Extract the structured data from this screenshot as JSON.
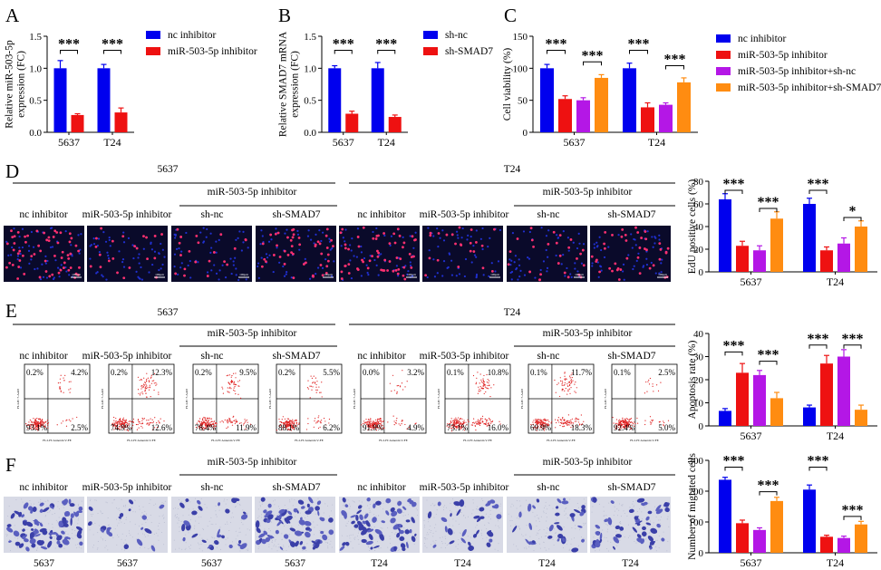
{
  "colors": {
    "nc": "#0000EE",
    "mir": "#EE1111",
    "shnc": "#B417E6",
    "shsmad": "#FF8C11"
  },
  "text": {
    "mir_inh": "miR-503-5p inhibitor",
    "nc_inh": "nc inhibitor",
    "sh_nc": "sh-nc",
    "sh_smad7": "sh-SMAD7",
    "c5637": "5637",
    "t24": "T24",
    "scale_bar": "100μm"
  },
  "panel_letters": [
    "A",
    "B",
    "C",
    "D",
    "E",
    "F"
  ],
  "chart_data": [
    {
      "id": "A",
      "type": "bar",
      "ylabel": "Relative miR-503-5p expression (FC)",
      "ylabel_lines": [
        "Relative miR-503-5p",
        "expression (FC)"
      ],
      "categories": [
        "5637",
        "T24"
      ],
      "ylim": [
        0,
        1.5
      ],
      "yticks": [
        "0.0",
        "0.5",
        "1.0",
        "1.5"
      ],
      "series": [
        {
          "name": "nc inhibitor",
          "color": "nc",
          "values": [
            1.0,
            1.0
          ],
          "errors": [
            0.12,
            0.06
          ]
        },
        {
          "name": "miR-503-5p inhibitor",
          "color": "mir",
          "values": [
            0.27,
            0.31
          ],
          "errors": [
            0.02,
            0.07
          ]
        }
      ],
      "sig": [
        {
          "cat": 0,
          "from": 0,
          "to": 1,
          "y": 1.28,
          "label": "***"
        },
        {
          "cat": 1,
          "from": 0,
          "to": 1,
          "y": 1.28,
          "label": "***"
        }
      ]
    },
    {
      "id": "B",
      "type": "bar",
      "ylabel": "Relative SMAD7 mRNA expression (FC)",
      "ylabel_lines": [
        "Relative SMAD7 mRNA",
        "expression (FC)"
      ],
      "categories": [
        "5637",
        "T24"
      ],
      "ylim": [
        0,
        1.5
      ],
      "yticks": [
        "0.0",
        "0.5",
        "1.0",
        "1.5"
      ],
      "series": [
        {
          "name": "sh-nc",
          "color": "nc",
          "values": [
            1.0,
            1.0
          ],
          "errors": [
            0.04,
            0.09
          ]
        },
        {
          "name": "sh-SMAD7",
          "color": "mir",
          "values": [
            0.29,
            0.24
          ],
          "errors": [
            0.04,
            0.03
          ]
        }
      ],
      "sig": [
        {
          "cat": 0,
          "from": 0,
          "to": 1,
          "y": 1.28,
          "label": "***"
        },
        {
          "cat": 1,
          "from": 0,
          "to": 1,
          "y": 1.28,
          "label": "***"
        }
      ]
    },
    {
      "id": "C",
      "type": "bar",
      "ylabel": "Cell viability (%)",
      "ylabel_lines": [
        "Cell viability (%)"
      ],
      "categories": [
        "5637",
        "T24"
      ],
      "ylim": [
        0,
        150
      ],
      "yticks": [
        "0",
        "50",
        "100",
        "150"
      ],
      "series": [
        {
          "name": "nc inhibitor",
          "color": "nc",
          "values": [
            100,
            100
          ],
          "errors": [
            6,
            8
          ]
        },
        {
          "name": "miR-503-5p inhibitor",
          "color": "mir",
          "values": [
            52,
            39
          ],
          "errors": [
            5,
            7
          ]
        },
        {
          "name": "miR-503-5p inhibitor+sh-nc",
          "color": "shnc",
          "values": [
            50,
            43
          ],
          "errors": [
            4,
            3
          ]
        },
        {
          "name": "miR-503-5p inhibitor+sh-SMAD7",
          "color": "shsmad",
          "values": [
            85,
            78
          ],
          "errors": [
            5,
            7
          ]
        }
      ],
      "sig": [
        {
          "cat": 0,
          "from": 0,
          "to": 1,
          "y": 128,
          "label": "***"
        },
        {
          "cat": 0,
          "from": 2,
          "to": 3,
          "y": 110,
          "label": "***"
        },
        {
          "cat": 1,
          "from": 0,
          "to": 1,
          "y": 128,
          "label": "***"
        },
        {
          "cat": 1,
          "from": 2,
          "to": 3,
          "y": 104,
          "label": "***"
        }
      ]
    },
    {
      "id": "D",
      "type": "bar",
      "ylabel": "EdU positive cells (%)",
      "ylabel_lines": [
        "EdU positive cells (%)"
      ],
      "categories": [
        "5637",
        "T24"
      ],
      "ylim": [
        0,
        80
      ],
      "yticks": [
        "0",
        "20",
        "40",
        "60",
        "80"
      ],
      "series": [
        {
          "name": "nc inhibitor",
          "color": "nc",
          "values": [
            64,
            60
          ],
          "errors": [
            5,
            5
          ]
        },
        {
          "name": "miR-503-5p inhibitor",
          "color": "mir",
          "values": [
            23,
            19
          ],
          "errors": [
            4,
            3
          ]
        },
        {
          "name": "miR-503-5p inhibitor+sh-nc",
          "color": "shnc",
          "values": [
            19,
            25
          ],
          "errors": [
            4,
            5
          ]
        },
        {
          "name": "miR-503-5p inhibitor+sh-SMAD7",
          "color": "shsmad",
          "values": [
            47,
            40
          ],
          "errors": [
            6,
            5
          ]
        }
      ],
      "sig": [
        {
          "cat": 0,
          "from": 0,
          "to": 1,
          "y": 72,
          "label": "***"
        },
        {
          "cat": 0,
          "from": 2,
          "to": 3,
          "y": 56,
          "label": "***"
        },
        {
          "cat": 1,
          "from": 0,
          "to": 1,
          "y": 72,
          "label": "***"
        },
        {
          "cat": 1,
          "from": 2,
          "to": 3,
          "y": 48,
          "label": "*"
        }
      ]
    },
    {
      "id": "E",
      "type": "bar",
      "ylabel": "Apoptosis rate (%)",
      "ylabel_lines": [
        "Apoptosis rate (%)"
      ],
      "categories": [
        "5637",
        "T24"
      ],
      "ylim": [
        0,
        40
      ],
      "yticks": [
        "0",
        "10",
        "20",
        "30",
        "40"
      ],
      "series": [
        {
          "name": "nc inhibitor",
          "color": "nc",
          "values": [
            6.5,
            8
          ],
          "errors": [
            1,
            1
          ]
        },
        {
          "name": "miR-503-5p inhibitor",
          "color": "mir",
          "values": [
            23,
            27
          ],
          "errors": [
            4,
            3.5
          ]
        },
        {
          "name": "miR-503-5p inhibitor+sh-nc",
          "color": "shnc",
          "values": [
            22,
            30
          ],
          "errors": [
            2,
            3
          ]
        },
        {
          "name": "miR-503-5p inhibitor+sh-SMAD7",
          "color": "shsmad",
          "values": [
            12,
            7
          ],
          "errors": [
            2.5,
            2
          ]
        }
      ],
      "sig": [
        {
          "cat": 0,
          "from": 0,
          "to": 1,
          "y": 32,
          "label": "***"
        },
        {
          "cat": 0,
          "from": 2,
          "to": 3,
          "y": 28,
          "label": "***"
        },
        {
          "cat": 1,
          "from": 0,
          "to": 1,
          "y": 35,
          "label": "***"
        },
        {
          "cat": 1,
          "from": 2,
          "to": 3,
          "y": 35,
          "label": "***"
        }
      ]
    },
    {
      "id": "F",
      "type": "bar",
      "ylabel": "Number of migrated cells",
      "ylabel_lines": [
        "Number of migrated cells"
      ],
      "categories": [
        "5637",
        "T24"
      ],
      "ylim": [
        0,
        300
      ],
      "yticks": [
        "0",
        "100",
        "200",
        "300"
      ],
      "series": [
        {
          "name": "nc inhibitor",
          "color": "nc",
          "values": [
            237,
            205
          ],
          "errors": [
            8,
            15
          ]
        },
        {
          "name": "miR-503-5p inhibitor",
          "color": "mir",
          "values": [
            96,
            52
          ],
          "errors": [
            10,
            5
          ]
        },
        {
          "name": "miR-503-5p inhibitor+sh-nc",
          "color": "shnc",
          "values": [
            74,
            48
          ],
          "errors": [
            7,
            6
          ]
        },
        {
          "name": "miR-503-5p inhibitor+sh-SMAD7",
          "color": "shsmad",
          "values": [
            168,
            92
          ],
          "errors": [
            12,
            10
          ]
        }
      ],
      "sig": [
        {
          "cat": 0,
          "from": 0,
          "to": 1,
          "y": 278,
          "label": "***"
        },
        {
          "cat": 0,
          "from": 2,
          "to": 3,
          "y": 198,
          "label": "***"
        },
        {
          "cat": 1,
          "from": 0,
          "to": 1,
          "y": 278,
          "label": "***"
        },
        {
          "cat": 1,
          "from": 2,
          "to": 3,
          "y": 118,
          "label": "***"
        }
      ]
    }
  ],
  "legend_A": [
    "nc inhibitor",
    "miR-503-5p inhibitor"
  ],
  "legend_B": [
    "sh-nc",
    "sh-SMAD7"
  ],
  "legend_C": [
    "nc inhibitor",
    "miR-503-5p inhibitor",
    "miR-503-5p inhibitor+sh-nc",
    "miR-503-5p inhibitor+sh-SMAD7"
  ],
  "micro_labels": [
    "nc inhibitor",
    "miR-503-5p inhibitor",
    "sh-nc",
    "sh-SMAD7",
    "nc inhibitor",
    "miR-503-5p inhibitor",
    "sh-nc",
    "sh-SMAD7"
  ],
  "flow": [
    {
      "ul": "0.2%",
      "ur": "4.2%",
      "ll": "93.1%",
      "lr": "2.5%"
    },
    {
      "ul": "0.2%",
      "ur": "12.3%",
      "ll": "74.9%",
      "lr": "12.6%"
    },
    {
      "ul": "0.2%",
      "ur": "9.5%",
      "ll": "78.4%",
      "lr": "11.9%"
    },
    {
      "ul": "0.2%",
      "ur": "5.5%",
      "ll": "88.1%",
      "lr": "6.2%"
    },
    {
      "ul": "0.0%",
      "ur": "3.2%",
      "ll": "91.9%",
      "lr": "4.9%"
    },
    {
      "ul": "0.1%",
      "ur": "10.8%",
      "ll": "73.1%",
      "lr": "16.0%"
    },
    {
      "ul": "0.1%",
      "ur": "11.7%",
      "ll": "69.9%",
      "lr": "18.3%"
    },
    {
      "ul": "0.1%",
      "ur": "2.5%",
      "ll": "92.4%",
      "lr": "5.0%"
    }
  ],
  "flow_axes": {
    "x": "FL2-H: Annexin V-FE",
    "y": "FL4-H: 7-AAD"
  },
  "transwell_density": [
    0.9,
    0.2,
    0.3,
    0.8,
    0.75,
    0.35,
    0.35,
    0.55
  ],
  "transwell_bottom": [
    "5637",
    "5637",
    "5637",
    "5637",
    "T24",
    "T24",
    "T24",
    "T24"
  ]
}
